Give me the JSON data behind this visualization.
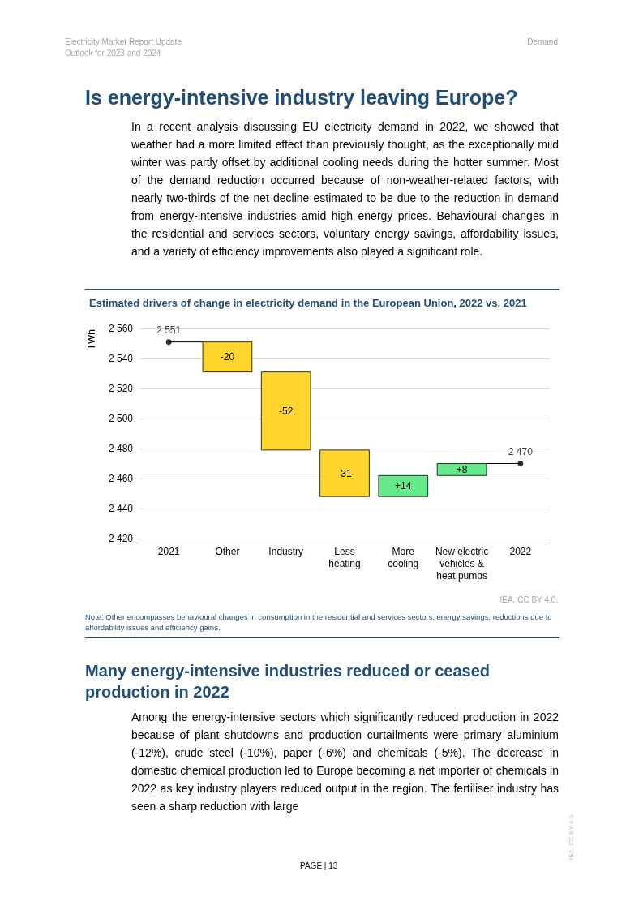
{
  "chart_data": {
    "type": "bar",
    "title": "Estimated drivers of change in electricity demand in the European Union, 2022 vs. 2021",
    "ylabel": "TWh",
    "categories": [
      "2021",
      "Other",
      "Industry",
      "Less\nheating",
      "More\ncooling",
      "New electric\nvehicles &\nheat pumps",
      "2022"
    ],
    "series": [
      {
        "values": [
          null,
          -20,
          -52,
          -31,
          14,
          8,
          null
        ],
        "base": [
          null,
          2551,
          2531,
          2479,
          2448,
          2462,
          null
        ],
        "colors": [
          null,
          "#ffd52e",
          "#ffd52e",
          "#ffd52e",
          "#66e98a",
          "#66e98a",
          null
        ],
        "value_labels": [
          null,
          "-20",
          "-52",
          "-31",
          "+14",
          "+8",
          null
        ]
      },
      {
        "type": "scatter",
        "values": [
          2551,
          null,
          null,
          null,
          null,
          null,
          2470
        ],
        "color": "#000000",
        "value_labels": [
          "2 551",
          null,
          null,
          null,
          null,
          null,
          "2 470"
        ]
      }
    ],
    "ylim": [
      2420,
      2560
    ],
    "yticks": [
      {
        "value": 2420,
        "label": "2 420"
      },
      {
        "value": 2440,
        "label": "2 440"
      },
      {
        "value": 2460,
        "label": "2 460"
      },
      {
        "value": 2480,
        "label": "2 480"
      },
      {
        "value": 2500,
        "label": "2 500"
      },
      {
        "value": 2520,
        "label": "2 520"
      },
      {
        "value": 2540,
        "label": "2 540"
      },
      {
        "value": 2560,
        "label": "2 560"
      }
    ],
    "grid": "y",
    "marker": "circle",
    "annotations": [
      "Electricity Market Report Update",
      "Outlook for 2023 and 2024",
      "Demand",
      "Is energy-intensive industry leaving Europe?",
      "In a recent analysis discussing EU electricity demand in 2022, we showed that weather had a more limited effect than previously thought, as the exceptionally mild winter was partly offset by additional cooling needs during the hotter summer. Most of the demand reduction occurred because of non-weather-related factors, with nearly two-thirds of the net decline estimated to be due to the reduction in demand from energy-intensive industries amid high energy prices. Behavioural changes in the residential and services sectors, voluntary energy savings, affordability issues, and a variety of efficiency improvements also played a significant role.",
      "IEA. CC BY 4.0.",
      "Note: Other encompasses behavioural changes in consumption in the residential and services sectors, energy savings, reductions due to affordability issues and efficiency gains.",
      "Many energy-intensive industries reduced or ceased production in 2022",
      "Among the energy-intensive sectors which significantly reduced production in 2022 because of plant shutdowns and production curtailments were primary aluminium (-12%), crude steel (-10%), paper (-6%) and chemicals (-5%). The decrease in domestic chemical production led to Europe becoming a net importer of chemicals in 2022 as key industry players reduced output in the region. The fertiliser industry has seen a sharp reduction with large",
      "PAGE | 13",
      "IEA. CC BY 4.0."
    ]
  }
}
